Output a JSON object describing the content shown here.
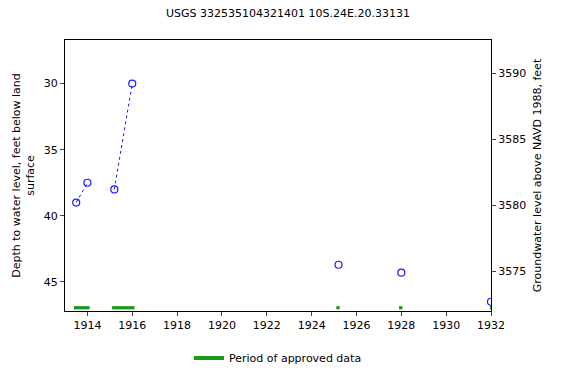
{
  "chart_data": {
    "type": "scatter",
    "title": "USGS 332535104321401 10S.24E.20.33131",
    "y_label": "Depth to water level, feet below land\nsurface",
    "y2_label": "Groundwater level above NAVD 1988, feet",
    "x": [
      1913.5,
      1914.0,
      null,
      1915.2,
      1916.0,
      null,
      1925.2,
      null,
      1928.0,
      null,
      1932.0
    ],
    "series": [
      {
        "values": [
          39.0,
          37.5,
          null,
          38.0,
          30.0,
          null,
          43.7,
          null,
          44.3,
          null,
          46.5
        ],
        "color": "#1a1aff",
        "marker": "circle-open",
        "line_style": "dot"
      }
    ],
    "approved_periods": {
      "name": "Period of approved data",
      "color": "#1a9a1a",
      "ranges": [
        [
          1913.4,
          1914.1
        ],
        [
          1915.1,
          1916.1
        ],
        [
          1925.1,
          1925.25
        ],
        [
          1927.9,
          1928.05
        ],
        [
          1931.95,
          1932.0
        ]
      ]
    },
    "xlim": [
      1913,
      1932
    ],
    "xticks": [
      1914,
      1916,
      1918,
      1920,
      1922,
      1924,
      1926,
      1928,
      1930,
      1932
    ],
    "ylim": [
      47.2,
      26.7
    ],
    "yticks": [
      30,
      35,
      40,
      45
    ],
    "y2lim": [
      3572.0,
      3592.5
    ],
    "y2ticks": [
      3575,
      3580,
      3585,
      3590
    ],
    "grid": false,
    "legend": "bottom"
  }
}
